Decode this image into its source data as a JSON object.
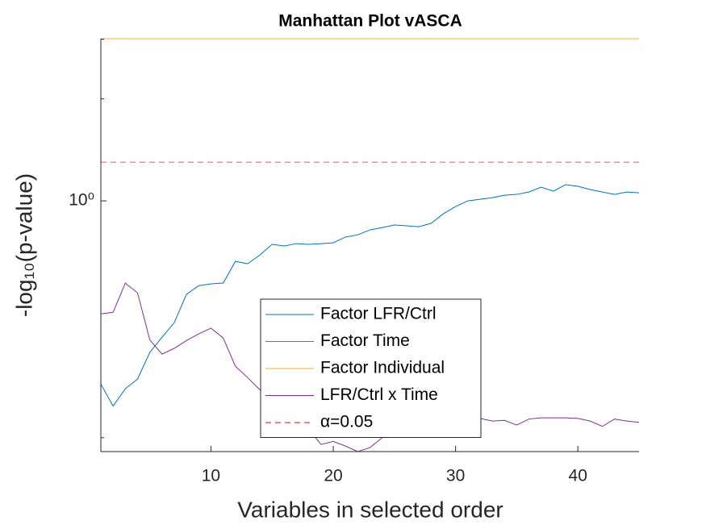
{
  "chart_data": {
    "type": "line",
    "title": "Manhattan Plot vASCA",
    "x_label": "Variables in selected order",
    "y_label": "-log₁₀(p-value)",
    "log_y": true,
    "xlim": [
      1,
      45
    ],
    "xticks": [
      10,
      20,
      30,
      40
    ],
    "ylim": [
      0.182,
      3.01
    ],
    "yticks": [
      {
        "value": 1,
        "label": "10⁰"
      }
    ],
    "yminorticks": [
      0.2,
      2,
      3
    ],
    "x": [
      1,
      2,
      3,
      4,
      5,
      6,
      7,
      8,
      9,
      10,
      11,
      12,
      13,
      14,
      15,
      16,
      17,
      18,
      19,
      20,
      21,
      22,
      23,
      24,
      25,
      26,
      27,
      28,
      29,
      30,
      31,
      32,
      33,
      34,
      35,
      36,
      37,
      38,
      39,
      40,
      41,
      42,
      43,
      44,
      45
    ],
    "series": [
      {
        "name": "Factor LFR/Ctrl",
        "color": "#0072bd",
        "values": [
          0.288,
          0.248,
          0.279,
          0.298,
          0.357,
          0.396,
          0.437,
          0.53,
          0.562,
          0.569,
          0.572,
          0.663,
          0.652,
          0.692,
          0.744,
          0.736,
          0.748,
          0.744,
          0.748,
          0.752,
          0.782,
          0.794,
          0.821,
          0.834,
          0.849,
          0.844,
          0.839,
          0.858,
          0.916,
          0.962,
          1.0,
          1.011,
          1.022,
          1.039,
          1.045,
          1.062,
          1.098,
          1.068,
          1.116,
          1.104,
          1.08,
          1.062,
          1.045,
          1.062,
          1.056
        ]
      },
      {
        "name": "Factor Time",
        "color": "#d95319",
        "values": [
          3.01,
          3.01,
          3.01,
          3.01,
          3.01,
          3.01,
          3.01,
          3.01,
          3.01,
          3.01,
          3.01,
          3.01,
          3.01,
          3.01,
          3.01,
          3.01,
          3.01,
          3.01,
          3.01,
          3.01,
          3.01,
          3.01,
          3.01,
          3.01,
          3.01,
          3.01,
          3.01,
          3.01,
          3.01,
          3.01,
          3.01,
          3.01,
          3.01,
          3.01,
          3.01,
          3.01,
          3.01,
          3.01,
          3.01,
          3.01,
          3.01,
          3.01,
          3.01,
          3.01,
          3.01
        ]
      },
      {
        "name": "Factor Individual",
        "color": "#edb120",
        "values": [
          3.01,
          3.01,
          3.01,
          3.01,
          3.01,
          3.01,
          3.01,
          3.01,
          3.01,
          3.01,
          3.01,
          3.01,
          3.01,
          3.01,
          3.01,
          3.01,
          3.01,
          3.01,
          3.01,
          3.01,
          3.01,
          3.01,
          3.01,
          3.01,
          3.01,
          3.01,
          3.01,
          3.01,
          3.01,
          3.01,
          3.01,
          3.01,
          3.01,
          3.01,
          3.01,
          3.01,
          3.01,
          3.01,
          3.01,
          3.01,
          3.01,
          3.01,
          3.01,
          3.01,
          3.01
        ]
      },
      {
        "name": "LFR/Ctrl x Time",
        "color": "#7e2f8e",
        "values": [
          0.464,
          0.469,
          0.572,
          0.535,
          0.389,
          0.353,
          0.367,
          0.387,
          0.405,
          0.421,
          0.394,
          0.325,
          0.301,
          0.277,
          0.257,
          0.24,
          0.224,
          0.212,
          0.191,
          0.195,
          0.189,
          0.182,
          0.187,
          0.2,
          0.206,
          0.214,
          0.218,
          0.224,
          0.229,
          0.231,
          0.23,
          0.228,
          0.224,
          0.225,
          0.218,
          0.227,
          0.229,
          0.229,
          0.229,
          0.228,
          0.224,
          0.216,
          0.227,
          0.224,
          0.222
        ]
      }
    ],
    "threshold": {
      "name": "α=0.05",
      "value": 1.301,
      "color": "#ff0000"
    },
    "legend": "bottom-center"
  }
}
